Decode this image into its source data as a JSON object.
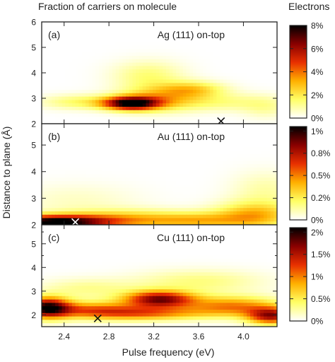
{
  "chart_data": {
    "type": "heatmap",
    "title": "Fraction of carriers on molecule",
    "colorbar_title": "Electrons",
    "xlabel": "Pulse frequency (eV)",
    "ylabel": "Distance to plane (Å)",
    "colormap": "white-yellow-orange-red-black (hot, reversed)",
    "colors": {
      "c0": "#ffffff",
      "c1": "#ffff66",
      "c2": "#ffb000",
      "c3": "#e83000",
      "c4": "#8a0000",
      "c5": "#000000"
    },
    "xlim": [
      2.2,
      4.3
    ],
    "x_ticks": [
      2.4,
      2.8,
      3.2,
      3.6,
      4.0
    ],
    "x_tick_labels": [
      "2.4",
      "2.8",
      "3.2",
      "3.6",
      "4.0"
    ],
    "panels": [
      {
        "label": "(a)",
        "name": "Ag (111) on-top",
        "ylim": [
          2,
          6
        ],
        "y_ticks": [
          2,
          3,
          4,
          5,
          6
        ],
        "y_tick_labels": [
          "2",
          "3",
          "4",
          "5",
          "6"
        ],
        "colorbar_max": 8,
        "colorbar_ticks": [
          0,
          2,
          4,
          6,
          8
        ],
        "colorbar_tick_labels": [
          "0%",
          "2%",
          "4%",
          "6%",
          "8%"
        ],
        "marker": {
          "x": 3.8,
          "y": 2.1,
          "symbol": "×"
        },
        "blobs": [
          {
            "x": 3.0,
            "y": 2.8,
            "sx": 0.17,
            "sy": 0.18,
            "amp": 7.8
          },
          {
            "x": 3.25,
            "y": 3.0,
            "sx": 0.25,
            "sy": 0.35,
            "amp": 2.5
          },
          {
            "x": 2.55,
            "y": 2.85,
            "sx": 0.25,
            "sy": 0.2,
            "amp": 1.6
          },
          {
            "x": 3.15,
            "y": 3.9,
            "sx": 0.22,
            "sy": 0.4,
            "amp": 1.4
          },
          {
            "x": 3.55,
            "y": 3.35,
            "sx": 0.2,
            "sy": 0.22,
            "amp": 2.2
          },
          {
            "x": 3.8,
            "y": 2.85,
            "sx": 0.35,
            "sy": 0.25,
            "amp": 1.2
          },
          {
            "x": 4.2,
            "y": 2.6,
            "sx": 0.15,
            "sy": 0.3,
            "amp": 0.8
          }
        ]
      },
      {
        "label": "(b)",
        "name": "Au (111) on-top",
        "ylim": [
          2,
          5.8
        ],
        "y_ticks": [
          2,
          3,
          4,
          5
        ],
        "y_tick_labels": [
          "2",
          "3",
          "4",
          "5"
        ],
        "colorbar_max": 1.05,
        "colorbar_ticks": [
          0,
          0.25,
          0.5,
          0.75,
          1.0
        ],
        "colorbar_tick_labels": [
          "0%",
          "0.2%",
          "0.5%",
          "0.8%",
          "1%"
        ],
        "marker": {
          "x": 2.5,
          "y": 2.1,
          "symbol": "×"
        },
        "blobs": [
          {
            "x": 2.3,
            "y": 2.1,
            "sx": 0.35,
            "sy": 0.18,
            "amp": 1.05
          },
          {
            "x": 2.95,
            "y": 2.2,
            "sx": 0.4,
            "sy": 0.25,
            "amp": 0.35
          },
          {
            "x": 3.6,
            "y": 2.15,
            "sx": 0.3,
            "sy": 0.22,
            "amp": 0.3
          },
          {
            "x": 4.1,
            "y": 2.35,
            "sx": 0.25,
            "sy": 0.35,
            "amp": 0.4
          },
          {
            "x": 4.2,
            "y": 3.3,
            "sx": 0.22,
            "sy": 0.5,
            "amp": 0.12
          },
          {
            "x": 2.5,
            "y": 2.9,
            "sx": 0.4,
            "sy": 0.45,
            "amp": 0.08
          }
        ]
      },
      {
        "label": "(c)",
        "name": "Cu (111) on-top",
        "ylim": [
          1.5,
          5.8
        ],
        "y_ticks": [
          2,
          2.5,
          3,
          3.5,
          4,
          4.5,
          5,
          5.5
        ],
        "y_tick_labels": [
          "2",
          "",
          "3",
          "",
          "4",
          "",
          "5",
          ""
        ],
        "colorbar_max": 2.1,
        "colorbar_ticks": [
          0,
          0.5,
          1.0,
          1.5,
          2.0
        ],
        "colorbar_tick_labels": [
          "0%",
          "0.5%",
          "1%",
          "1.5%",
          "2%"
        ],
        "marker": {
          "x": 2.7,
          "y": 1.85,
          "symbol": "×"
        },
        "blobs": [
          {
            "x": 2.25,
            "y": 2.3,
            "sx": 0.14,
            "sy": 0.3,
            "amp": 1.9
          },
          {
            "x": 2.65,
            "y": 2.2,
            "sx": 0.3,
            "sy": 0.25,
            "amp": 1.0
          },
          {
            "x": 3.25,
            "y": 2.65,
            "sx": 0.22,
            "sy": 0.25,
            "amp": 1.7
          },
          {
            "x": 3.15,
            "y": 2.05,
            "sx": 0.35,
            "sy": 0.2,
            "amp": 0.9
          },
          {
            "x": 3.9,
            "y": 2.35,
            "sx": 0.3,
            "sy": 0.3,
            "amp": 1.0
          },
          {
            "x": 4.25,
            "y": 1.95,
            "sx": 0.15,
            "sy": 0.25,
            "amp": 1.5
          },
          {
            "x": 3.6,
            "y": 3.4,
            "sx": 0.4,
            "sy": 0.35,
            "amp": 0.35
          },
          {
            "x": 2.6,
            "y": 3.1,
            "sx": 0.3,
            "sy": 0.3,
            "amp": 0.3
          }
        ]
      }
    ]
  }
}
